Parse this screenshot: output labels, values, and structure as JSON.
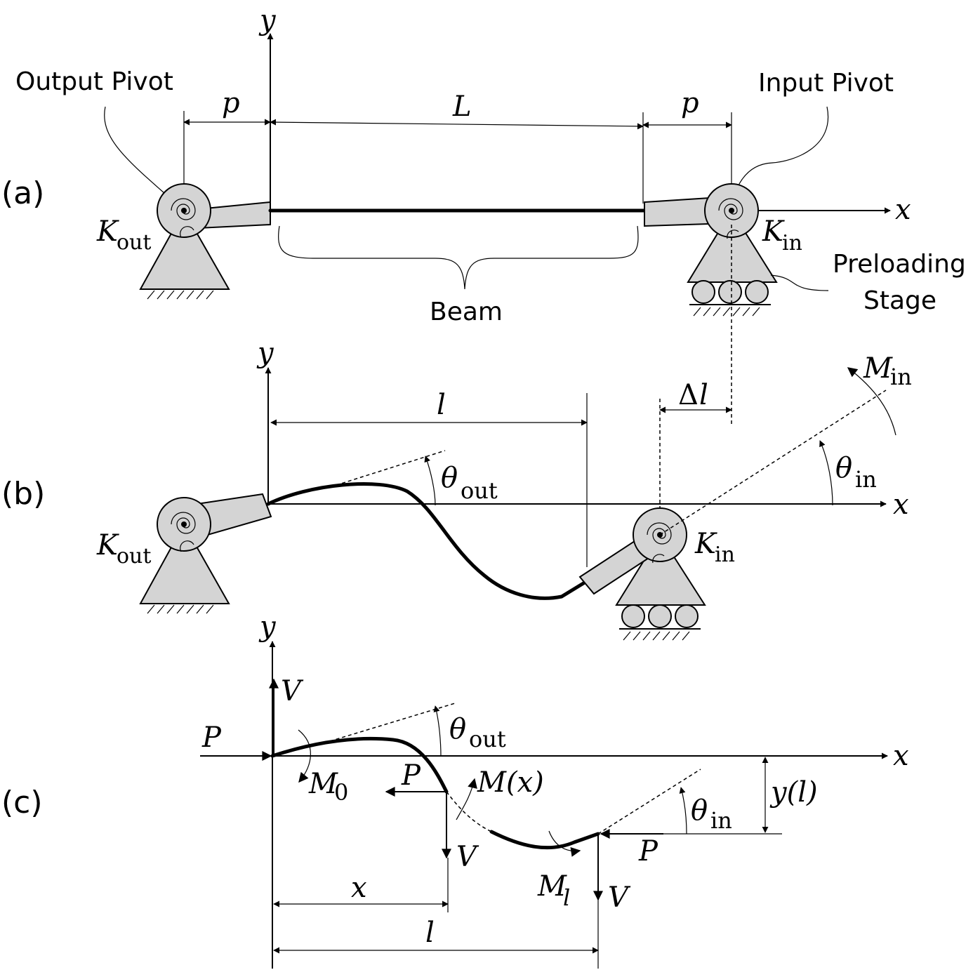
{
  "panels": {
    "a": "(a)",
    "b": "(b)",
    "c": "(c)"
  },
  "labels": {
    "output_pivot": "Output Pivot",
    "input_pivot": "Input Pivot",
    "beam": "Beam",
    "preloading_stage_line1": "Preloading",
    "preloading_stage_line2": "Stage"
  },
  "symbols": {
    "x": "x",
    "y": "y",
    "p": "p",
    "L": "L",
    "l": "l",
    "delta": "Δ",
    "K": "K",
    "M": "M",
    "V": "V",
    "P": "P",
    "theta": "θ",
    "sub_out": "out",
    "sub_in": "in",
    "sub_0": "0",
    "sub_l": "l",
    "Mx": "M(x)",
    "yl": "y(l)"
  }
}
